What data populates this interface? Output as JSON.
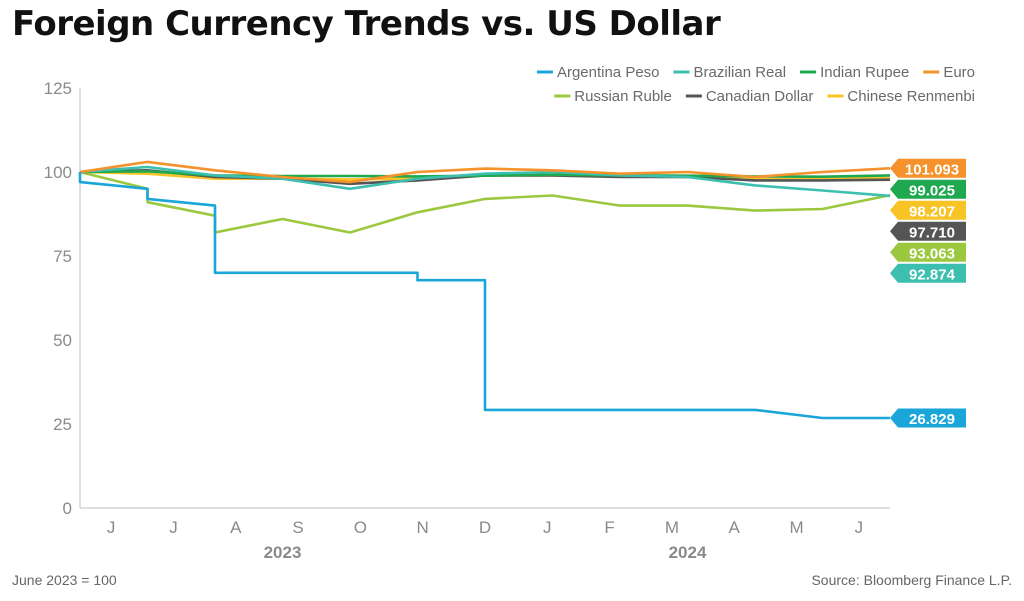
{
  "title": "Foreign Currency Trends vs. US Dollar",
  "footnote": "June 2023 = 100",
  "source": "Source: Bloomberg Finance L.P.",
  "chart_data": {
    "type": "line",
    "title": "Foreign Currency Trends vs. US Dollar",
    "xlabel": "",
    "ylabel": "",
    "ylim": [
      0,
      125
    ],
    "yticks": [
      0,
      25,
      50,
      75,
      100,
      125
    ],
    "x_range": [
      "2023-06",
      "2024-06"
    ],
    "x_ticks": [
      "J",
      "J",
      "A",
      "S",
      "O",
      "N",
      "D",
      "J",
      "F",
      "M",
      "A",
      "M",
      "J"
    ],
    "years": [
      {
        "label": "2023",
        "at": "2023-09"
      },
      {
        "label": "2024",
        "at": "2024-03"
      }
    ],
    "legend_position": "top-right",
    "grid": false,
    "series": [
      {
        "name": "Argentina Peso",
        "color": "#1aa6d9",
        "end_value": "26.829",
        "x": [
          "2023-06",
          "2023-06",
          "2023-07",
          "2023-07",
          "2023-08",
          "2023-08",
          "2023-08",
          "2023-11",
          "2023-11",
          "2023-12",
          "2023-12",
          "2024-04",
          "2024-05",
          "2024-06"
        ],
        "values": [
          100,
          97,
          95,
          92,
          90,
          87,
          70,
          70,
          67.8,
          67.8,
          29.2,
          29.2,
          26.8,
          26.8
        ]
      },
      {
        "name": "Brazilian Real",
        "color": "#3cbfae",
        "end_value": "92.874",
        "x": [
          "2023-06",
          "2023-07",
          "2023-08",
          "2023-09",
          "2023-10",
          "2023-11",
          "2023-12",
          "2024-01",
          "2024-02",
          "2024-03",
          "2024-04",
          "2024-05",
          "2024-06"
        ],
        "values": [
          100,
          101.5,
          99,
          98,
          95,
          98,
          99.5,
          100,
          99,
          98.5,
          96,
          94.5,
          92.9
        ]
      },
      {
        "name": "Indian Rupee",
        "color": "#1fa84f",
        "end_value": "99.025",
        "x": [
          "2023-06",
          "2023-07",
          "2023-08",
          "2023-09",
          "2023-10",
          "2023-11",
          "2023-12",
          "2024-01",
          "2024-02",
          "2024-03",
          "2024-04",
          "2024-05",
          "2024-06"
        ],
        "values": [
          100,
          100.2,
          99,
          98.8,
          98.8,
          98.7,
          98.9,
          99.2,
          99,
          98.9,
          98.7,
          98.6,
          99.0
        ]
      },
      {
        "name": "Euro",
        "color": "#f5922b",
        "end_value": "101.093",
        "x": [
          "2023-06",
          "2023-07",
          "2023-08",
          "2023-09",
          "2023-10",
          "2023-11",
          "2023-12",
          "2024-01",
          "2024-02",
          "2024-03",
          "2024-04",
          "2024-05",
          "2024-06"
        ],
        "values": [
          100,
          103,
          100.5,
          98.5,
          97,
          100,
          101,
          100.5,
          99.5,
          100,
          98.5,
          100,
          101.1
        ]
      },
      {
        "name": "Russian Ruble",
        "color": "#9cc83f",
        "end_value": "93.063",
        "x": [
          "2023-06",
          "2023-07",
          "2023-07",
          "2023-08",
          "2023-08",
          "2023-09",
          "2023-10",
          "2023-11",
          "2023-12",
          "2024-01",
          "2024-02",
          "2024-03",
          "2024-04",
          "2024-05",
          "2024-06"
        ],
        "values": [
          100,
          95,
          91,
          87,
          82,
          86,
          82,
          88,
          92,
          93,
          90,
          90,
          88.5,
          89,
          93.1
        ]
      },
      {
        "name": "Canadian Dollar",
        "color": "#555555",
        "end_value": "97.710",
        "x": [
          "2023-06",
          "2023-07",
          "2023-08",
          "2023-09",
          "2023-10",
          "2023-11",
          "2023-12",
          "2024-01",
          "2024-02",
          "2024-03",
          "2024-04",
          "2024-05",
          "2024-06"
        ],
        "values": [
          100,
          100.5,
          98.5,
          98,
          96.5,
          97.5,
          99,
          99,
          98.5,
          98.5,
          97.5,
          97.5,
          97.7
        ]
      },
      {
        "name": "Chinese Renmenbi",
        "color": "#f7c325",
        "end_value": "98.207",
        "x": [
          "2023-06",
          "2023-07",
          "2023-08",
          "2023-09",
          "2023-10",
          "2023-11",
          "2023-12",
          "2024-01",
          "2024-02",
          "2024-03",
          "2024-04",
          "2024-05",
          "2024-06"
        ],
        "values": [
          100,
          99.5,
          98,
          98,
          97.8,
          98,
          99,
          99,
          98.7,
          98.5,
          97.8,
          98,
          98.2
        ]
      }
    ]
  }
}
